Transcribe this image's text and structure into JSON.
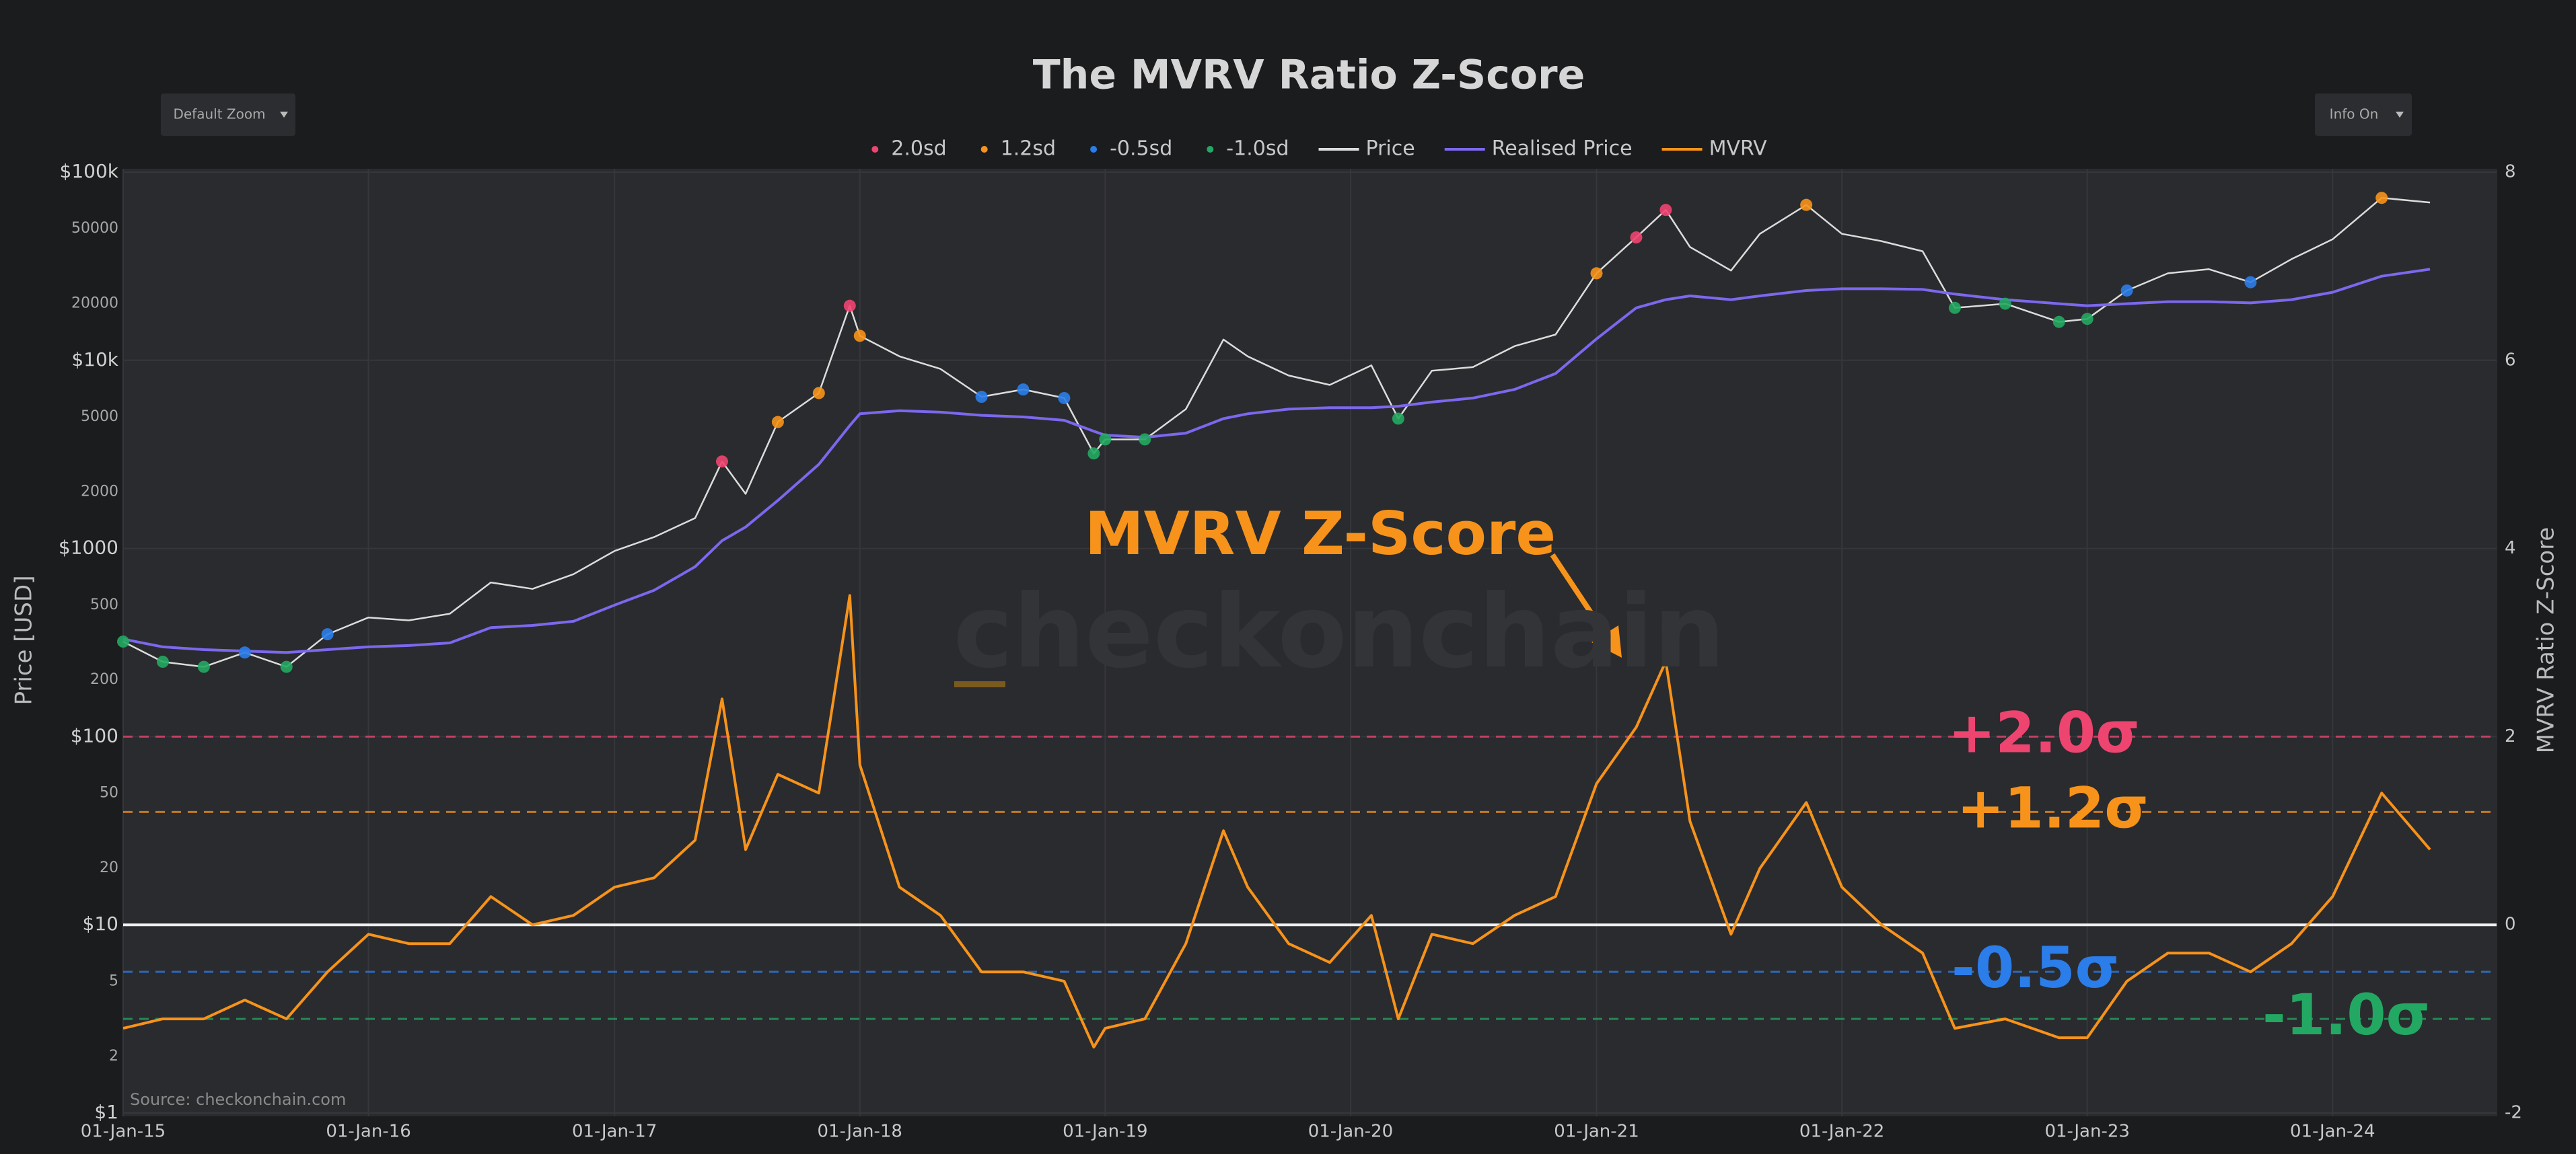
{
  "chart_data": {
    "type": "line",
    "title": "The MVRV Ratio Z-Score",
    "controls": [
      "Default Zoom",
      "Info On"
    ],
    "ylabel": "Price [USD]",
    "y2label": "MVRV Ratio Z-Score",
    "annotation": "MVRV Z-Score",
    "watermark": "checkonchain",
    "source": "Source: checkonchain.com",
    "log_y": true,
    "x": [
      "2015-01-01",
      "2015-03-01",
      "2015-05-01",
      "2015-07-01",
      "2015-09-01",
      "2015-11-01",
      "2016-01-01",
      "2016-03-01",
      "2016-05-01",
      "2016-07-01",
      "2016-09-01",
      "2016-11-01",
      "2017-01-01",
      "2017-03-01",
      "2017-05-01",
      "2017-06-10",
      "2017-07-15",
      "2017-09-01",
      "2017-11-01",
      "2017-12-17",
      "2018-01-01",
      "2018-03-01",
      "2018-05-01",
      "2018-07-01",
      "2018-09-01",
      "2018-11-01",
      "2018-12-15",
      "2019-01-01",
      "2019-03-01",
      "2019-05-01",
      "2019-06-26",
      "2019-08-01",
      "2019-10-01",
      "2019-12-01",
      "2020-02-01",
      "2020-03-12",
      "2020-05-01",
      "2020-07-01",
      "2020-09-01",
      "2020-11-01",
      "2021-01-01",
      "2021-03-01",
      "2021-04-14",
      "2021-05-20",
      "2021-07-20",
      "2021-09-01",
      "2021-11-09",
      "2022-01-01",
      "2022-03-01",
      "2022-05-01",
      "2022-06-18",
      "2022-09-01",
      "2022-11-20",
      "2023-01-01",
      "2023-03-01",
      "2023-05-01",
      "2023-07-01",
      "2023-09-01",
      "2023-11-01",
      "2024-01-01",
      "2024-03-14",
      "2024-05-25"
    ],
    "series": [
      {
        "name": "Price",
        "color": "#dcdcdc",
        "values": [
          320,
          250,
          235,
          280,
          235,
          350,
          430,
          415,
          450,
          660,
          610,
          730,
          970,
          1150,
          1450,
          2900,
          1950,
          4700,
          6700,
          19500,
          13500,
          10500,
          9000,
          6400,
          7000,
          6300,
          3200,
          3800,
          3800,
          5500,
          12900,
          10500,
          8300,
          7400,
          9400,
          4900,
          8800,
          9200,
          11900,
          13700,
          29000,
          45000,
          63000,
          40000,
          30000,
          47000,
          67000,
          47000,
          43000,
          38000,
          19000,
          20000,
          16000,
          16600,
          23500,
          29000,
          30500,
          26000,
          34500,
          44000,
          73000,
          69000
        ]
      },
      {
        "name": "Realised Price",
        "color": "#7b68ee",
        "values": [
          330,
          300,
          290,
          285,
          280,
          290,
          300,
          305,
          315,
          380,
          390,
          410,
          500,
          600,
          800,
          1100,
          1300,
          1800,
          2800,
          4500,
          5200,
          5400,
          5300,
          5100,
          5000,
          4800,
          4200,
          4000,
          3900,
          4100,
          4900,
          5200,
          5500,
          5600,
          5600,
          5700,
          6000,
          6300,
          7000,
          8500,
          13000,
          19000,
          21000,
          22000,
          21000,
          22000,
          23500,
          24000,
          24000,
          23800,
          22500,
          21000,
          20000,
          19500,
          20000,
          20500,
          20500,
          20200,
          21000,
          23000,
          28000,
          30500
        ]
      },
      {
        "name": "MVRV",
        "color": "#f7931a",
        "axis": "y2",
        "values": [
          -1.1,
          -1.0,
          -1.0,
          -0.8,
          -1.0,
          -0.5,
          -0.1,
          -0.2,
          -0.2,
          0.3,
          0.0,
          0.1,
          0.4,
          0.5,
          0.9,
          2.4,
          0.8,
          1.6,
          1.4,
          3.5,
          1.7,
          0.4,
          0.1,
          -0.5,
          -0.5,
          -0.6,
          -1.3,
          -1.1,
          -1.0,
          -0.2,
          1.0,
          0.4,
          -0.2,
          -0.4,
          0.1,
          -1.0,
          -0.1,
          -0.2,
          0.1,
          0.3,
          1.5,
          2.1,
          2.8,
          1.1,
          -0.1,
          0.6,
          1.3,
          0.4,
          0.0,
          -0.3,
          -1.1,
          -1.0,
          -1.2,
          -1.2,
          -0.6,
          -0.3,
          -0.3,
          -0.5,
          -0.2,
          0.3,
          1.4,
          0.8
        ]
      }
    ],
    "bands": [
      {
        "name": "2.0sd",
        "label": "+2.0σ",
        "level": 2.0,
        "color": "#ee4470"
      },
      {
        "name": "1.2sd",
        "label": "+1.2σ",
        "level": 1.2,
        "color": "#f7931a"
      },
      {
        "name": "-0.5sd",
        "label": "-0.5σ",
        "level": -0.5,
        "color": "#2b7de9"
      },
      {
        "name": "-1.0sd",
        "label": "-1.0σ",
        "level": -1.0,
        "color": "#22a862"
      }
    ],
    "xlim": [
      "2015-01-01",
      "2024-09-01"
    ],
    "xticks": [
      {
        "value": "2015-01-01",
        "label": "01-Jan-15"
      },
      {
        "value": "2016-01-01",
        "label": "01-Jan-16"
      },
      {
        "value": "2017-01-01",
        "label": "01-Jan-17"
      },
      {
        "value": "2018-01-01",
        "label": "01-Jan-18"
      },
      {
        "value": "2019-01-01",
        "label": "01-Jan-19"
      },
      {
        "value": "2020-01-01",
        "label": "01-Jan-20"
      },
      {
        "value": "2021-01-01",
        "label": "01-Jan-21"
      },
      {
        "value": "2022-01-01",
        "label": "01-Jan-22"
      },
      {
        "value": "2023-01-01",
        "label": "01-Jan-23"
      },
      {
        "value": "2024-01-01",
        "label": "01-Jan-24"
      }
    ],
    "ylim": [
      1,
      100000
    ],
    "yticks": [
      {
        "value": 1,
        "label": "$1"
      },
      2,
      5,
      {
        "value": 10,
        "label": "$10"
      },
      20,
      50,
      {
        "value": 100,
        "label": "$100"
      },
      200,
      500,
      {
        "value": 1000,
        "label": "$1000"
      },
      2000,
      5000,
      {
        "value": 10000,
        "label": "$10k"
      },
      20000,
      50000,
      {
        "value": 100000,
        "label": "$100k"
      }
    ],
    "y2lim": [
      -2,
      8
    ],
    "y2ticks": [
      -2,
      0,
      2,
      4,
      6,
      8
    ],
    "grid": true
  }
}
